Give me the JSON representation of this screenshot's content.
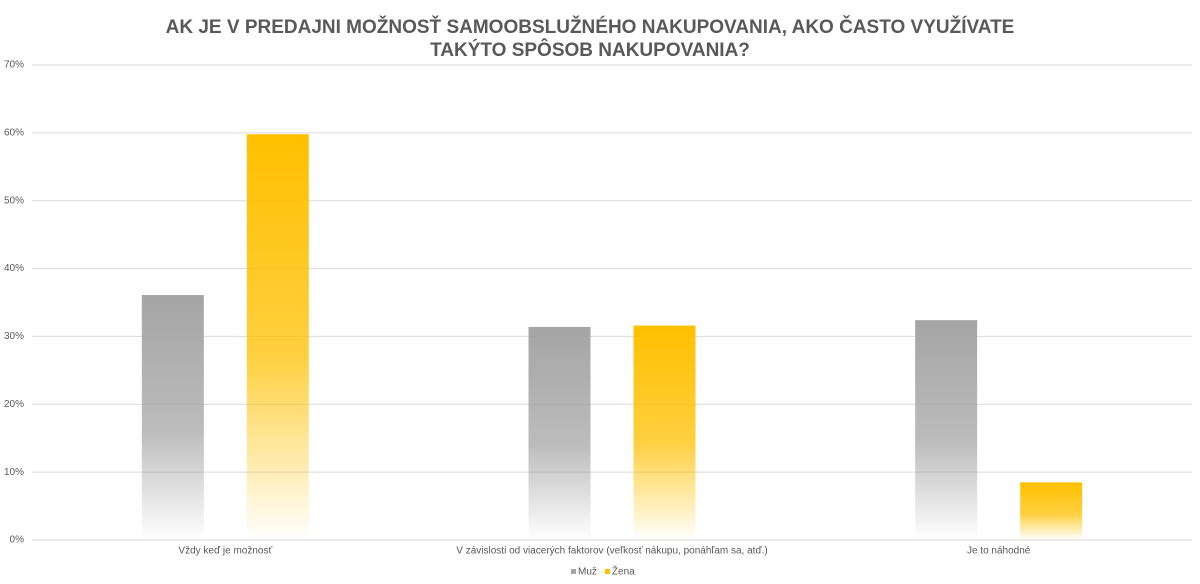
{
  "chart_data": {
    "type": "bar",
    "title": "AK JE V PREDAJNI MOŽNOSŤ SAMOOBSLUŽNÉHO NAKUPOVANIA, AKO ČASTO VYUŽÍVATE TAKÝTO SPÔSOB NAKUPOVANIA?",
    "categories": [
      "Vždy keď je možnosť",
      "V závislosti od viacerých faktorov (veľkosť nákupu, ponáhľam sa, atď.)",
      "Je to náhodné"
    ],
    "series": [
      {
        "name": "Muž",
        "color": "#a5a5a5",
        "values": [
          36.1,
          31.4,
          32.4
        ]
      },
      {
        "name": "Žena",
        "color": "#ffc000",
        "values": [
          59.8,
          31.6,
          8.5
        ]
      }
    ],
    "ylim": [
      0,
      70
    ],
    "yticks": [
      {
        "value": 0,
        "label": "0%"
      },
      {
        "value": 10,
        "label": "10%"
      },
      {
        "value": 20,
        "label": "20%"
      },
      {
        "value": 30,
        "label": "30%"
      },
      {
        "value": 40,
        "label": "40%"
      },
      {
        "value": 50,
        "label": "50%"
      },
      {
        "value": 60,
        "label": "60%"
      },
      {
        "value": 70,
        "label": "70%"
      }
    ],
    "grid": true,
    "legend": "bottom"
  }
}
